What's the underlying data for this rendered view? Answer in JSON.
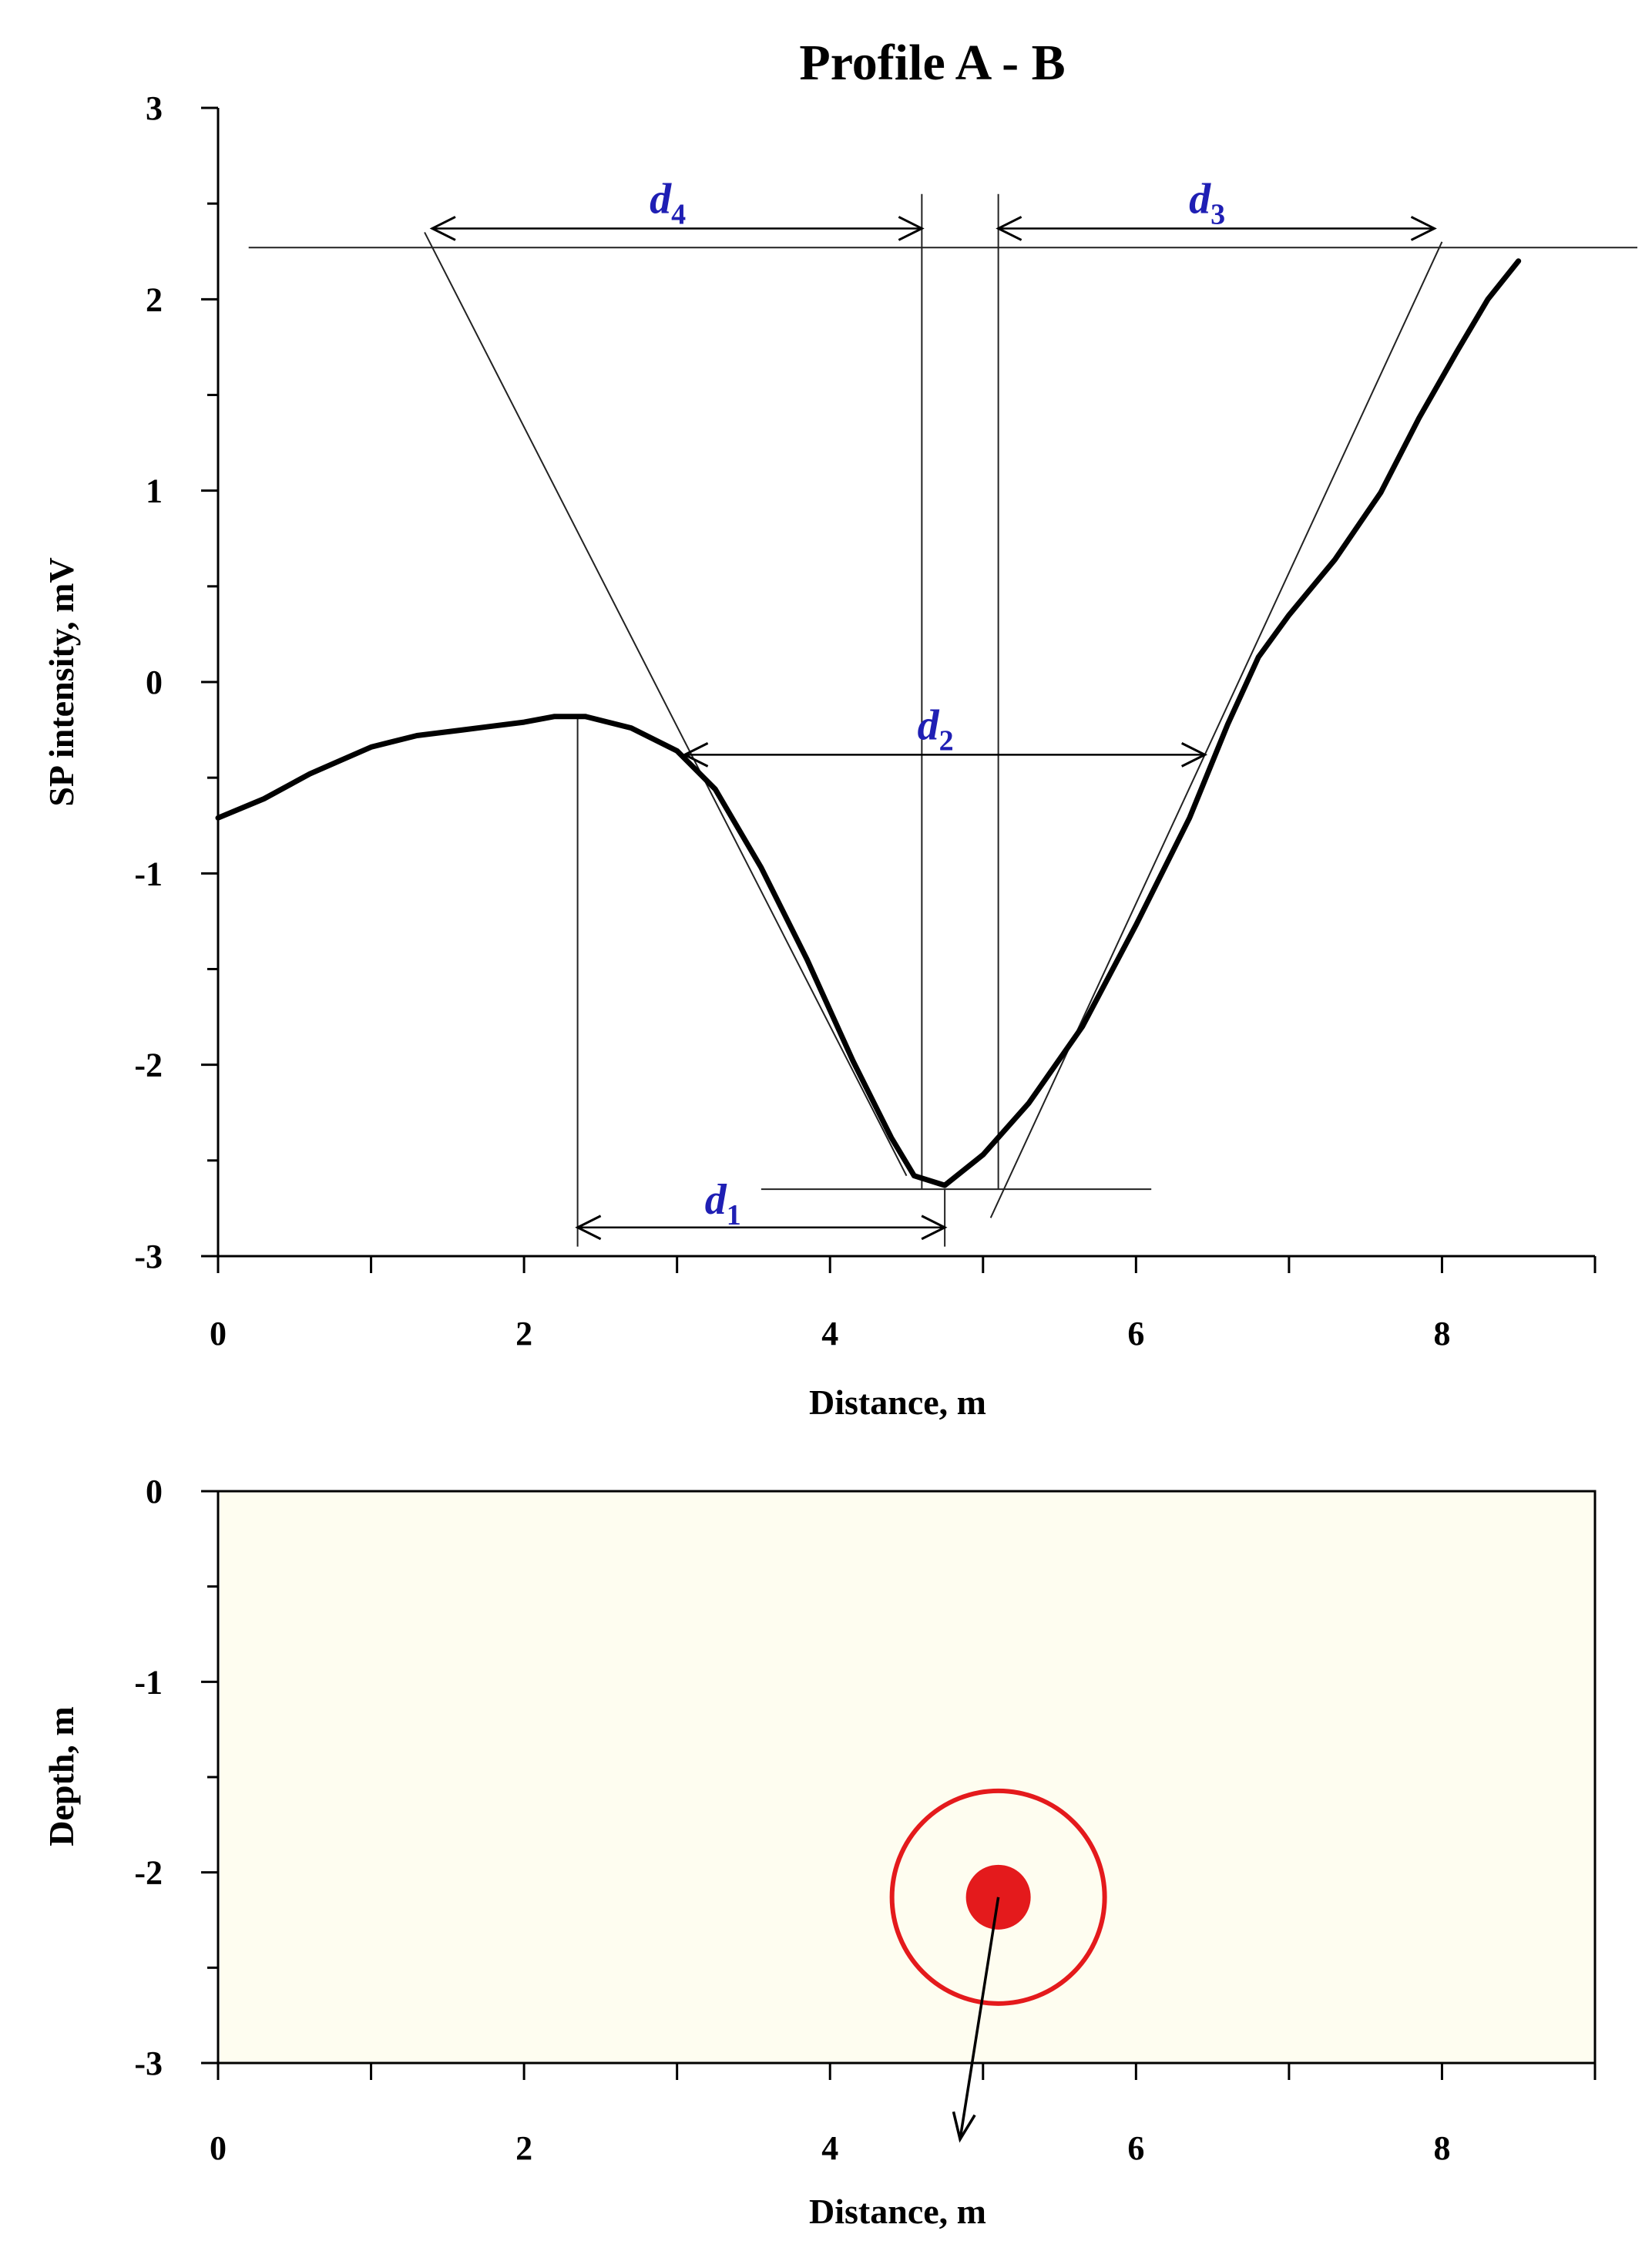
{
  "chart_data": [
    {
      "type": "line",
      "title": "Profile A - B",
      "xlabel": "Distance, m",
      "ylabel": "SP intensity, mV",
      "xlim": [
        0,
        9
      ],
      "ylim": [
        -3,
        3
      ],
      "x_ticks": [
        0,
        2,
        4,
        6,
        8
      ],
      "y_ticks": [
        -3,
        -2,
        -1,
        0,
        1,
        2,
        3
      ],
      "grid": false,
      "series": [
        {
          "color": "#000000",
          "points": [
            [
              0,
              -0.71
            ],
            [
              0.3,
              -0.61
            ],
            [
              0.6,
              -0.48
            ],
            [
              0.8,
              -0.41
            ],
            [
              1.0,
              -0.34
            ],
            [
              1.3,
              -0.28
            ],
            [
              1.6,
              -0.25
            ],
            [
              2.0,
              -0.21
            ],
            [
              2.2,
              -0.18
            ],
            [
              2.4,
              -0.18
            ],
            [
              2.7,
              -0.24
            ],
            [
              3.0,
              -0.36
            ],
            [
              3.25,
              -0.56
            ],
            [
              3.55,
              -0.97
            ],
            [
              3.85,
              -1.45
            ],
            [
              4.15,
              -1.98
            ],
            [
              4.4,
              -2.38
            ],
            [
              4.55,
              -2.58
            ],
            [
              4.75,
              -2.63
            ],
            [
              5.0,
              -2.47
            ],
            [
              5.3,
              -2.2
            ],
            [
              5.65,
              -1.8
            ],
            [
              6.0,
              -1.27
            ],
            [
              6.35,
              -0.71
            ],
            [
              6.6,
              -0.22
            ],
            [
              6.8,
              0.13
            ],
            [
              7.0,
              0.35
            ],
            [
              7.3,
              0.64
            ],
            [
              7.6,
              0.99
            ],
            [
              7.85,
              1.38
            ],
            [
              8.1,
              1.73
            ],
            [
              8.3,
              2.0
            ],
            [
              8.5,
              2.2
            ]
          ]
        }
      ],
      "annotations": [
        {
          "label": "d",
          "subscript": "1",
          "from_x": 2.35,
          "to_x": 4.75,
          "y": -2.85
        },
        {
          "label": "d",
          "subscript": "2",
          "from_x": 3.05,
          "to_x": 6.45,
          "y": -0.38
        },
        {
          "label": "d",
          "subscript": "3",
          "from_x": 5.1,
          "to_x": 7.95,
          "y": 2.37
        },
        {
          "label": "d",
          "subscript": "4",
          "from_x": 1.4,
          "to_x": 4.6,
          "y": 2.37
        }
      ]
    },
    {
      "type": "scatter",
      "xlabel": "Distance, m",
      "ylabel": "Depth, m",
      "xlim": [
        0,
        9
      ],
      "ylim": [
        -3,
        0
      ],
      "x_ticks": [
        0,
        2,
        4,
        6,
        8
      ],
      "y_ticks": [
        -3,
        -2,
        -1,
        0
      ],
      "background_color": "#fefdf0",
      "source": {
        "x": 5.1,
        "y": -2.13,
        "color": "#e41a1c"
      },
      "arrow_end": {
        "x": 4.85,
        "y": -3.4
      }
    }
  ]
}
